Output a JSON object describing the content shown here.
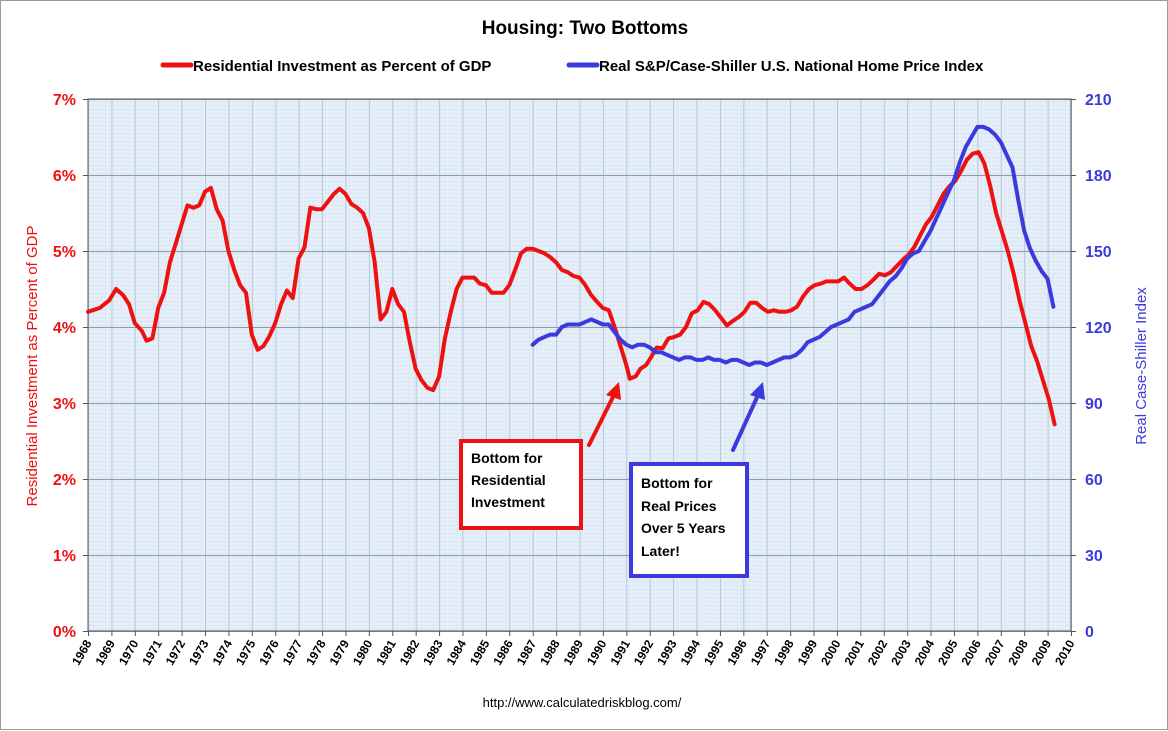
{
  "chart_data": {
    "type": "line",
    "title": "Housing: Two Bottoms",
    "source": "http://www.calculatedriskblog.com/",
    "colors": {
      "red": "#ee1111",
      "blue": "#3b3bdd",
      "plot_bg": "#ddeaf7",
      "grid": "#9aa9bd"
    },
    "legend_placement": "top",
    "x_axis": {
      "min": 1968,
      "max": 2010,
      "ticks": [
        "1968",
        "1969",
        "1970",
        "1971",
        "1972",
        "1973",
        "1974",
        "1975",
        "1976",
        "1977",
        "1978",
        "1979",
        "1980",
        "1981",
        "1982",
        "1983",
        "1984",
        "1985",
        "1986",
        "1987",
        "1988",
        "1989",
        "1990",
        "1991",
        "1992",
        "1993",
        "1994",
        "1995",
        "1996",
        "1997",
        "1998",
        "1999",
        "2000",
        "2001",
        "2002",
        "2003",
        "2004",
        "2005",
        "2006",
        "2007",
        "2008",
        "2009",
        "2010"
      ]
    },
    "y_left": {
      "label": "Residential Investment as Percent of GDP",
      "min": 0,
      "max": 7,
      "ticks": [
        "0%",
        "1%",
        "2%",
        "3%",
        "4%",
        "5%",
        "6%",
        "7%"
      ],
      "color": "#ee1111"
    },
    "y_right": {
      "label": "Real Case-Shiller Index",
      "min": 0,
      "max": 210,
      "ticks": [
        "0",
        "30",
        "60",
        "90",
        "120",
        "150",
        "180",
        "210"
      ],
      "color": "#3b3bdd"
    },
    "grid": true,
    "series": [
      {
        "name": "Residential Investment as Percent of GDP",
        "axis": "left",
        "color": "#ee1111",
        "points": [
          [
            1968.0,
            4.2
          ],
          [
            1968.5,
            4.25
          ],
          [
            1968.9,
            4.35
          ],
          [
            1969.2,
            4.5
          ],
          [
            1969.5,
            4.42
          ],
          [
            1969.75,
            4.3
          ],
          [
            1970.0,
            4.05
          ],
          [
            1970.3,
            3.95
          ],
          [
            1970.5,
            3.82
          ],
          [
            1970.75,
            3.85
          ],
          [
            1971.0,
            4.25
          ],
          [
            1971.25,
            4.45
          ],
          [
            1971.5,
            4.85
          ],
          [
            1971.75,
            5.1
          ],
          [
            1972.0,
            5.35
          ],
          [
            1972.25,
            5.6
          ],
          [
            1972.5,
            5.57
          ],
          [
            1972.75,
            5.6
          ],
          [
            1973.0,
            5.78
          ],
          [
            1973.25,
            5.83
          ],
          [
            1973.5,
            5.55
          ],
          [
            1973.75,
            5.4
          ],
          [
            1974.0,
            5.0
          ],
          [
            1974.25,
            4.75
          ],
          [
            1974.5,
            4.55
          ],
          [
            1974.75,
            4.45
          ],
          [
            1975.0,
            3.9
          ],
          [
            1975.25,
            3.7
          ],
          [
            1975.5,
            3.75
          ],
          [
            1975.75,
            3.88
          ],
          [
            1976.0,
            4.05
          ],
          [
            1976.25,
            4.3
          ],
          [
            1976.5,
            4.48
          ],
          [
            1976.75,
            4.38
          ],
          [
            1977.0,
            4.9
          ],
          [
            1977.25,
            5.05
          ],
          [
            1977.5,
            5.57
          ],
          [
            1977.75,
            5.55
          ],
          [
            1978.0,
            5.55
          ],
          [
            1978.25,
            5.65
          ],
          [
            1978.5,
            5.75
          ],
          [
            1978.75,
            5.82
          ],
          [
            1979.0,
            5.75
          ],
          [
            1979.25,
            5.62
          ],
          [
            1979.5,
            5.57
          ],
          [
            1979.75,
            5.5
          ],
          [
            1980.0,
            5.3
          ],
          [
            1980.25,
            4.85
          ],
          [
            1980.5,
            4.1
          ],
          [
            1980.75,
            4.2
          ],
          [
            1981.0,
            4.5
          ],
          [
            1981.25,
            4.3
          ],
          [
            1981.5,
            4.2
          ],
          [
            1981.75,
            3.8
          ],
          [
            1982.0,
            3.45
          ],
          [
            1982.25,
            3.3
          ],
          [
            1982.5,
            3.2
          ],
          [
            1982.75,
            3.17
          ],
          [
            1983.0,
            3.35
          ],
          [
            1983.25,
            3.85
          ],
          [
            1983.5,
            4.2
          ],
          [
            1983.75,
            4.5
          ],
          [
            1984.0,
            4.65
          ],
          [
            1984.25,
            4.65
          ],
          [
            1984.5,
            4.65
          ],
          [
            1984.75,
            4.57
          ],
          [
            1985.0,
            4.55
          ],
          [
            1985.25,
            4.45
          ],
          [
            1985.5,
            4.45
          ],
          [
            1985.75,
            4.45
          ],
          [
            1986.0,
            4.55
          ],
          [
            1986.25,
            4.75
          ],
          [
            1986.5,
            4.97
          ],
          [
            1986.75,
            5.03
          ],
          [
            1987.0,
            5.03
          ],
          [
            1987.25,
            5.0
          ],
          [
            1987.5,
            4.97
          ],
          [
            1987.75,
            4.92
          ],
          [
            1988.0,
            4.85
          ],
          [
            1988.25,
            4.75
          ],
          [
            1988.5,
            4.72
          ],
          [
            1988.75,
            4.67
          ],
          [
            1989.0,
            4.65
          ],
          [
            1989.25,
            4.55
          ],
          [
            1989.5,
            4.42
          ],
          [
            1989.75,
            4.33
          ],
          [
            1990.0,
            4.25
          ],
          [
            1990.25,
            4.22
          ],
          [
            1990.5,
            4.0
          ],
          [
            1990.75,
            3.75
          ],
          [
            1991.0,
            3.5
          ],
          [
            1991.15,
            3.32
          ],
          [
            1991.4,
            3.35
          ],
          [
            1991.6,
            3.45
          ],
          [
            1991.85,
            3.5
          ],
          [
            1992.05,
            3.6
          ],
          [
            1992.3,
            3.73
          ],
          [
            1992.55,
            3.72
          ],
          [
            1992.8,
            3.85
          ],
          [
            1993.05,
            3.87
          ],
          [
            1993.3,
            3.9
          ],
          [
            1993.55,
            4.0
          ],
          [
            1993.8,
            4.18
          ],
          [
            1994.05,
            4.22
          ],
          [
            1994.3,
            4.33
          ],
          [
            1994.55,
            4.3
          ],
          [
            1994.8,
            4.22
          ],
          [
            1995.05,
            4.12
          ],
          [
            1995.3,
            4.02
          ],
          [
            1995.55,
            4.08
          ],
          [
            1995.8,
            4.13
          ],
          [
            1996.05,
            4.2
          ],
          [
            1996.3,
            4.32
          ],
          [
            1996.55,
            4.32
          ],
          [
            1996.8,
            4.25
          ],
          [
            1997.05,
            4.2
          ],
          [
            1997.3,
            4.22
          ],
          [
            1997.55,
            4.2
          ],
          [
            1997.8,
            4.2
          ],
          [
            1998.05,
            4.22
          ],
          [
            1998.3,
            4.27
          ],
          [
            1998.55,
            4.4
          ],
          [
            1998.8,
            4.5
          ],
          [
            1999.05,
            4.55
          ],
          [
            1999.3,
            4.57
          ],
          [
            1999.55,
            4.6
          ],
          [
            1999.8,
            4.6
          ],
          [
            2000.05,
            4.6
          ],
          [
            2000.3,
            4.65
          ],
          [
            2000.55,
            4.57
          ],
          [
            2000.8,
            4.5
          ],
          [
            2001.05,
            4.5
          ],
          [
            2001.3,
            4.55
          ],
          [
            2001.55,
            4.62
          ],
          [
            2001.8,
            4.7
          ],
          [
            2002.05,
            4.68
          ],
          [
            2002.3,
            4.72
          ],
          [
            2002.55,
            4.8
          ],
          [
            2002.8,
            4.88
          ],
          [
            2003.05,
            4.95
          ],
          [
            2003.3,
            5.05
          ],
          [
            2003.55,
            5.2
          ],
          [
            2003.8,
            5.35
          ],
          [
            2004.05,
            5.45
          ],
          [
            2004.3,
            5.6
          ],
          [
            2004.55,
            5.75
          ],
          [
            2004.8,
            5.85
          ],
          [
            2005.05,
            5.92
          ],
          [
            2005.3,
            6.05
          ],
          [
            2005.55,
            6.2
          ],
          [
            2005.8,
            6.28
          ],
          [
            2006.05,
            6.3
          ],
          [
            2006.3,
            6.15
          ],
          [
            2006.55,
            5.85
          ],
          [
            2006.8,
            5.5
          ],
          [
            2007.05,
            5.25
          ],
          [
            2007.3,
            5.0
          ],
          [
            2007.55,
            4.7
          ],
          [
            2007.8,
            4.35
          ],
          [
            2008.05,
            4.05
          ],
          [
            2008.3,
            3.75
          ],
          [
            2008.55,
            3.55
          ],
          [
            2008.8,
            3.3
          ],
          [
            2009.05,
            3.05
          ],
          [
            2009.3,
            2.72
          ]
        ]
      },
      {
        "name": "Real S&P/Case-Shiller U.S. National Home Price Index",
        "axis": "right",
        "color": "#3b3bdd",
        "points": [
          [
            1987.0,
            113
          ],
          [
            1987.25,
            115
          ],
          [
            1987.5,
            116
          ],
          [
            1987.75,
            117
          ],
          [
            1988.0,
            117
          ],
          [
            1988.25,
            120
          ],
          [
            1988.5,
            121
          ],
          [
            1988.75,
            121
          ],
          [
            1989.0,
            121
          ],
          [
            1989.25,
            122
          ],
          [
            1989.5,
            123
          ],
          [
            1989.75,
            122
          ],
          [
            1990.0,
            121
          ],
          [
            1990.25,
            121
          ],
          [
            1990.5,
            118
          ],
          [
            1990.75,
            115
          ],
          [
            1991.0,
            113
          ],
          [
            1991.25,
            112
          ],
          [
            1991.5,
            113
          ],
          [
            1991.75,
            113
          ],
          [
            1992.0,
            112
          ],
          [
            1992.25,
            110
          ],
          [
            1992.5,
            110
          ],
          [
            1992.75,
            109
          ],
          [
            1993.0,
            108
          ],
          [
            1993.25,
            107
          ],
          [
            1993.5,
            108
          ],
          [
            1993.75,
            108
          ],
          [
            1994.0,
            107
          ],
          [
            1994.25,
            107
          ],
          [
            1994.5,
            108
          ],
          [
            1994.75,
            107
          ],
          [
            1995.0,
            107
          ],
          [
            1995.25,
            106
          ],
          [
            1995.5,
            107
          ],
          [
            1995.75,
            107
          ],
          [
            1996.0,
            106
          ],
          [
            1996.25,
            105
          ],
          [
            1996.5,
            106
          ],
          [
            1996.75,
            106
          ],
          [
            1997.0,
            105
          ],
          [
            1997.25,
            106
          ],
          [
            1997.5,
            107
          ],
          [
            1997.75,
            108
          ],
          [
            1998.0,
            108
          ],
          [
            1998.25,
            109
          ],
          [
            1998.5,
            111
          ],
          [
            1998.75,
            114
          ],
          [
            1999.0,
            115
          ],
          [
            1999.25,
            116
          ],
          [
            1999.5,
            118
          ],
          [
            1999.75,
            120
          ],
          [
            2000.0,
            121
          ],
          [
            2000.25,
            122
          ],
          [
            2000.5,
            123
          ],
          [
            2000.75,
            126
          ],
          [
            2001.0,
            127
          ],
          [
            2001.25,
            128
          ],
          [
            2001.5,
            129
          ],
          [
            2001.75,
            132
          ],
          [
            2002.0,
            135
          ],
          [
            2002.25,
            138
          ],
          [
            2002.5,
            140
          ],
          [
            2002.75,
            143
          ],
          [
            2003.0,
            147
          ],
          [
            2003.25,
            149
          ],
          [
            2003.5,
            150
          ],
          [
            2003.75,
            154
          ],
          [
            2004.0,
            158
          ],
          [
            2004.25,
            163
          ],
          [
            2004.5,
            168
          ],
          [
            2004.75,
            173
          ],
          [
            2005.0,
            178
          ],
          [
            2005.25,
            185
          ],
          [
            2005.5,
            191
          ],
          [
            2005.75,
            195
          ],
          [
            2006.0,
            199
          ],
          [
            2006.25,
            199
          ],
          [
            2006.5,
            198
          ],
          [
            2006.75,
            196
          ],
          [
            2007.0,
            193
          ],
          [
            2007.25,
            188
          ],
          [
            2007.5,
            183
          ],
          [
            2007.75,
            170
          ],
          [
            2008.0,
            158
          ],
          [
            2008.25,
            151
          ],
          [
            2008.5,
            146
          ],
          [
            2008.75,
            142
          ],
          [
            2009.0,
            139
          ],
          [
            2009.25,
            128
          ]
        ]
      }
    ],
    "annotations": [
      {
        "lines": [
          "Bottom for",
          "Residential",
          "Investment"
        ],
        "color": "#ee1111"
      },
      {
        "lines": [
          "Bottom for",
          "Real Prices",
          "Over 5 Years",
          "Later!"
        ],
        "color": "#3b3bdd"
      }
    ]
  }
}
